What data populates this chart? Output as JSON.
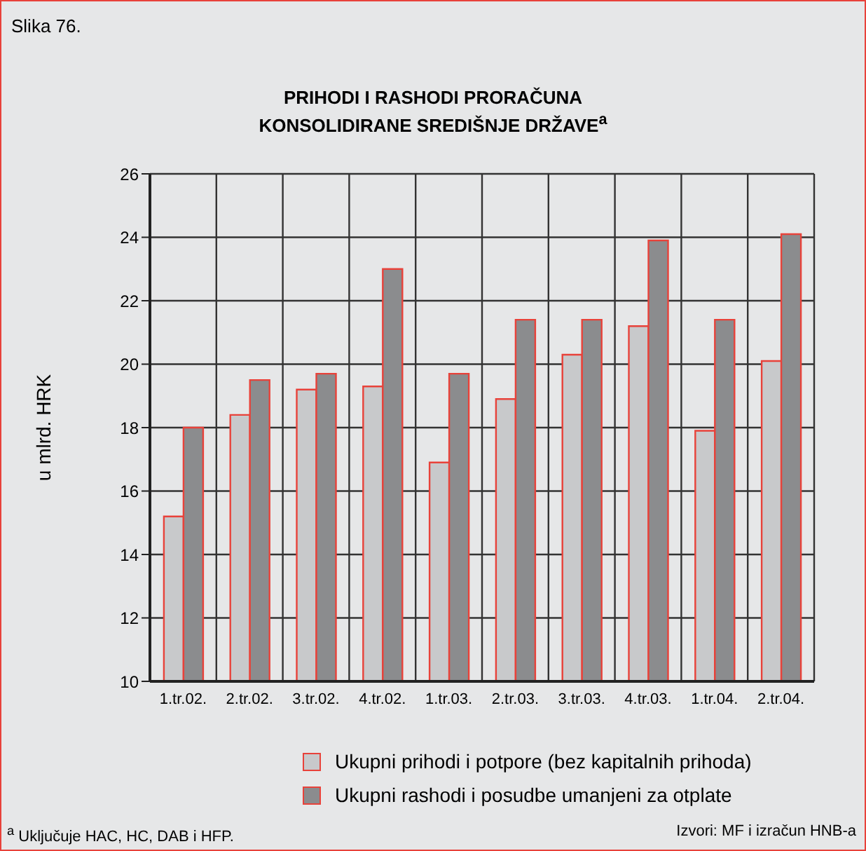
{
  "chart_data": {
    "type": "bar",
    "title": "PRIHODI I RASHODI PRORAČUNA\nKONSOLIDIRANE SREDIŠNJE DRŽAVE$^{a}$",
    "ylabel": "u mlrd. HRK",
    "annotations": [
      "Slika 76.",
      "$^{a}$ Uključuje HAC, HC, DAB i HFP.",
      "Izvori: MF i izračun HNB-a"
    ],
    "categories": [
      "1.tr.02.",
      "2.tr.02.",
      "3.tr.02.",
      "4.tr.02.",
      "1.tr.03.",
      "2.tr.03.",
      "3.tr.03.",
      "4.tr.03.",
      "1.tr.04.",
      "2.tr.04."
    ],
    "series": [
      {
        "name": "Ukupni prihodi i potpore (bez kapitalnih prihoda)",
        "color": "#c8c9cb",
        "values": [
          15.2,
          18.4,
          19.2,
          19.3,
          16.9,
          18.9,
          20.3,
          21.2,
          17.9,
          20.1
        ]
      },
      {
        "name": "Ukupni rashodi i posudbe umanjeni za otplate",
        "color": "#8b8c8e",
        "values": [
          18.0,
          19.5,
          19.7,
          23.0,
          19.7,
          21.4,
          21.4,
          23.9,
          21.4,
          24.1
        ]
      }
    ],
    "ylim": [
      10,
      26
    ],
    "yticks": [
      10,
      12,
      14,
      16,
      18,
      20,
      22,
      24,
      26
    ],
    "grid": true,
    "legend": "bottom"
  }
}
